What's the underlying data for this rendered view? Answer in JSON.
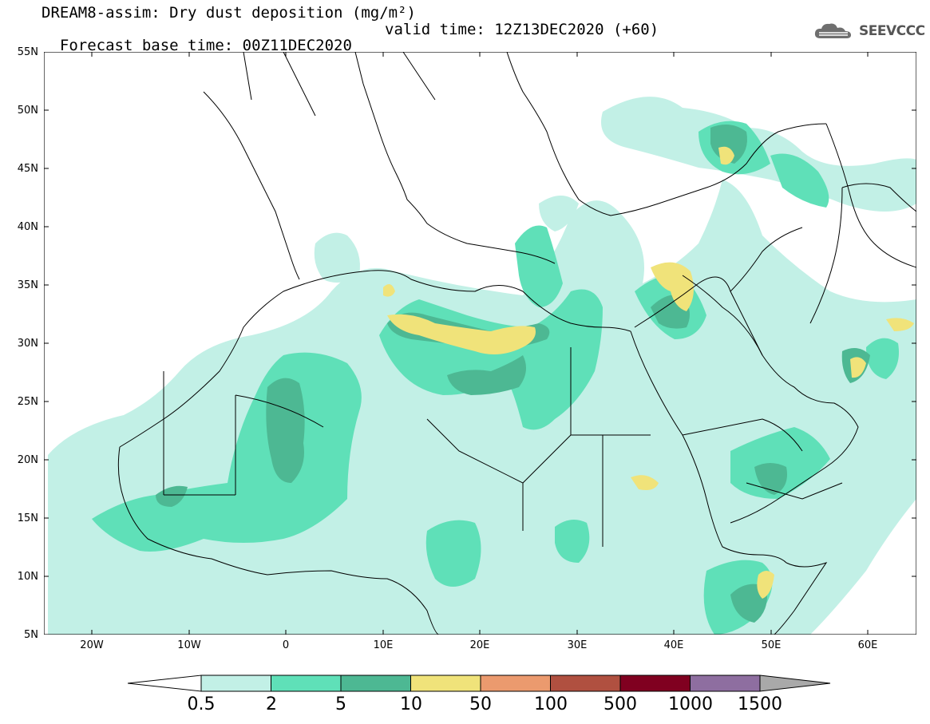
{
  "header": {
    "title": "DREAM8-assim: Dry dust deposition (mg/m²)",
    "base_time": "Forecast base time: 00Z11DEC2020",
    "valid_time": "valid time: 12Z13DEC2020 (+60)",
    "logo_text": "SEEVCCC"
  },
  "map": {
    "region": "North Africa, Middle East and Europe",
    "projection": "lat-lon",
    "lat_range": [
      "5N",
      "55N"
    ],
    "lon_range": [
      "25W",
      "65E"
    ],
    "lat_labels": [
      "55N",
      "50N",
      "45N",
      "40N",
      "35N",
      "30N",
      "25N",
      "20N",
      "15N",
      "10N",
      "5N"
    ],
    "lon_labels": [
      "20W",
      "10W",
      "0",
      "10E",
      "20E",
      "30E",
      "40E",
      "50E",
      "60E"
    ]
  },
  "legend": {
    "thresholds": [
      "0.5",
      "2",
      "5",
      "10",
      "50",
      "100",
      "500",
      "1000",
      "1500"
    ],
    "colors": [
      "#c2f0e6",
      "#5fe0b8",
      "#4db893",
      "#f0e37a",
      "#eb9a6e",
      "#b05040",
      "#800020",
      "#8e6ea0",
      "#a9a9a9"
    ]
  }
}
